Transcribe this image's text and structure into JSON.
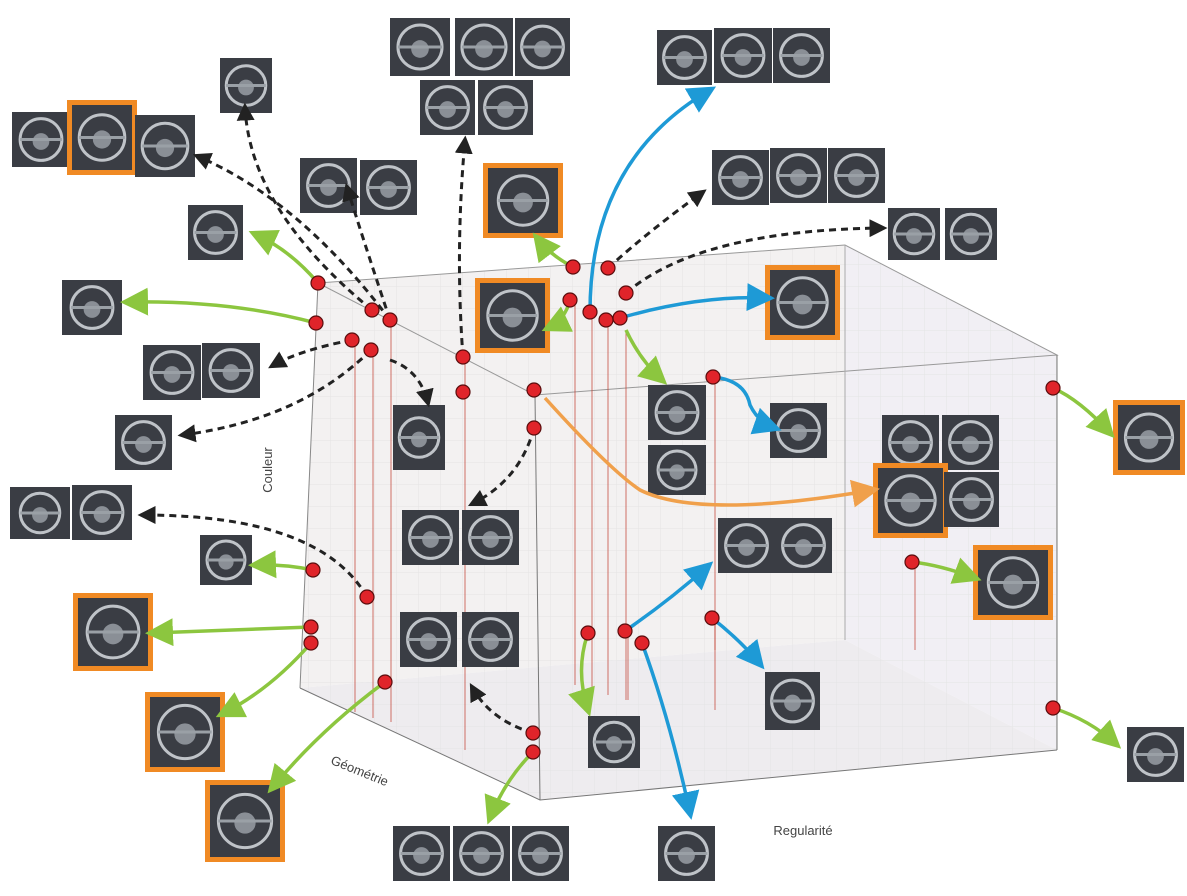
{
  "axes": {
    "z_label": "Couleur",
    "x_label": "Géométrie",
    "y_label": "Regularité"
  }
}
